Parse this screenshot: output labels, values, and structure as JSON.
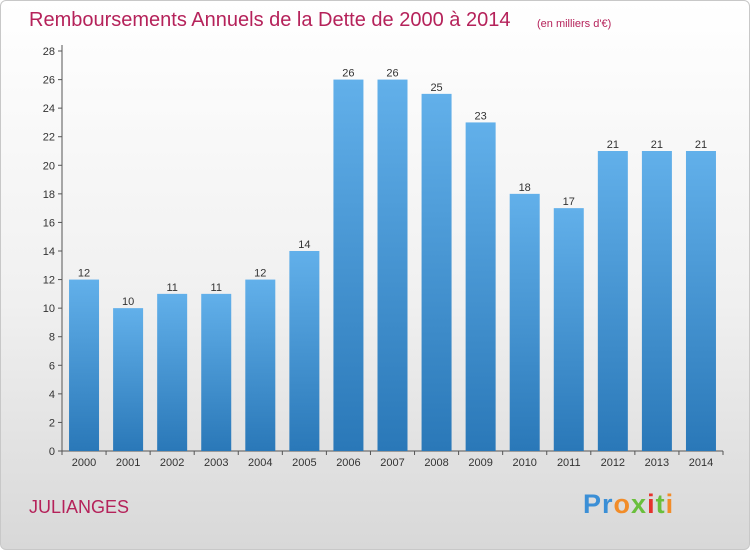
{
  "header": {
    "title": "Remboursements Annuels de la Dette de 2000 à 2014",
    "unit": "(en milliers d'€)"
  },
  "footer": {
    "commune": "JULIANGES",
    "logo_text": "Proxiti"
  },
  "colors": {
    "accent": "#b5225a",
    "bar_top": "#62b0ea",
    "bar_bottom": "#2a78b8"
  },
  "chart_data": {
    "type": "bar",
    "title": "Remboursements Annuels de la Dette de 2000 à 2014",
    "categories": [
      "2000",
      "2001",
      "2002",
      "2003",
      "2004",
      "2005",
      "2006",
      "2007",
      "2008",
      "2009",
      "2010",
      "2011",
      "2012",
      "2013",
      "2014"
    ],
    "values": [
      12,
      10,
      11,
      11,
      12,
      14,
      26,
      26,
      25,
      23,
      18,
      17,
      21,
      21,
      21
    ],
    "ylim": [
      0,
      28
    ],
    "yticks": [
      0,
      2,
      4,
      6,
      8,
      10,
      12,
      14,
      16,
      18,
      20,
      22,
      24,
      26,
      28
    ],
    "xlabel": "",
    "ylabel": "",
    "grid": false,
    "data_labels": true
  }
}
